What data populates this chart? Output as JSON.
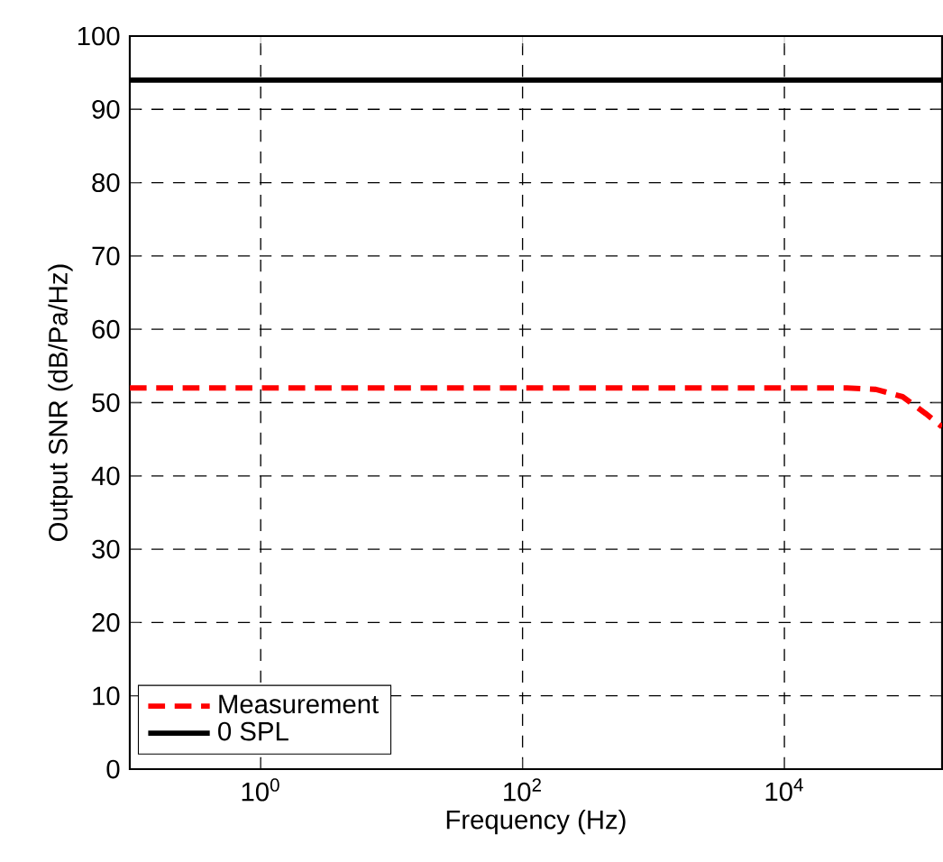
{
  "chart_data": {
    "type": "line",
    "xlabel": "Frequency (Hz)",
    "ylabel": "Output SNR (dB/Pa/Hz)",
    "log": "x",
    "grid": true,
    "legend": "bottom left",
    "xlim": [
      0.1,
      160000
    ],
    "ylim": [
      0,
      100
    ],
    "xticks": [
      {
        "value": 1,
        "label": "10$^{0}$"
      },
      {
        "value": 100,
        "label": "10$^{2}$"
      },
      {
        "value": 10000,
        "label": "10$^{4}$"
      }
    ],
    "yticks": [
      0,
      10,
      20,
      30,
      40,
      50,
      60,
      70,
      80,
      90,
      100
    ],
    "series": [
      {
        "name": "Measurement",
        "color": "#ff0000",
        "line_style": "dashed",
        "x": [
          0.1,
          30000,
          50000,
          80000,
          120000,
          160000
        ],
        "values": [
          52,
          52,
          51.8,
          50.8,
          48.5,
          46.7
        ]
      },
      {
        "name": "0 SPL",
        "color": "#000000",
        "line_style": "solid",
        "x": [
          0.1,
          160000
        ],
        "values": [
          94,
          94
        ]
      }
    ]
  }
}
